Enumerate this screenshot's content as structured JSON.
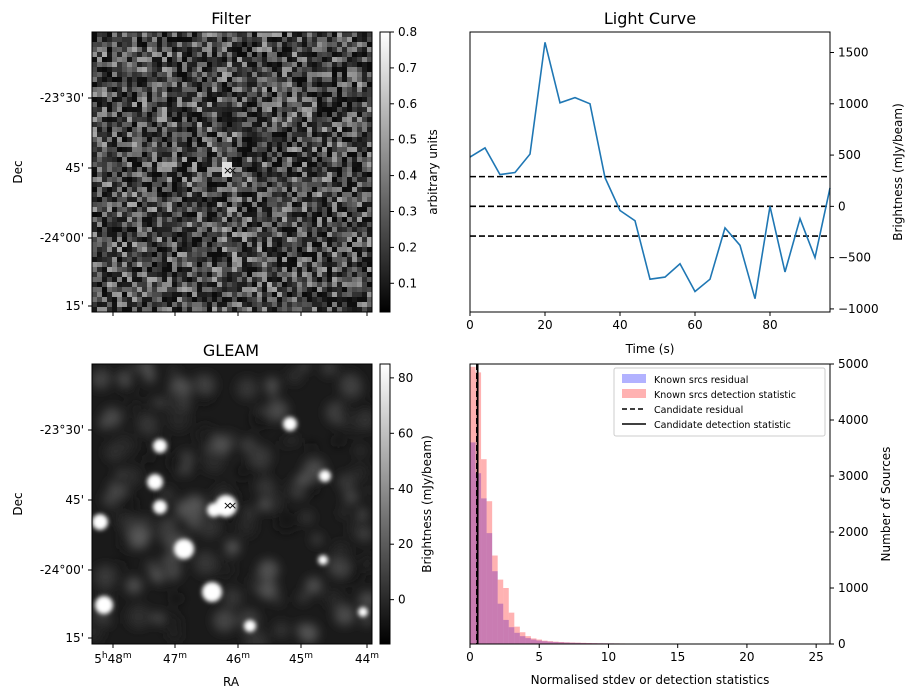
{
  "panels": {
    "filter": {
      "title": "Filter",
      "ylabel": "Dec",
      "yticks": [
        "-23°30'",
        "45'",
        "-24°00'",
        "15'"
      ],
      "colorbar": {
        "label": "arbitrary units",
        "ticks": [
          "0.1",
          "0.2",
          "0.3",
          "0.4",
          "0.5",
          "0.6",
          "0.7",
          "0.8"
        ],
        "range": [
          0.02,
          0.8
        ]
      },
      "markers": {
        "blue": "#0000ff",
        "red": "#ff0000"
      }
    },
    "gleam": {
      "title": "GLEAM",
      "ylabel": "Dec",
      "xlabel": "RA",
      "yticks": [
        "-23°30'",
        "45'",
        "-24°00'",
        "15'"
      ],
      "xticks": [
        "5h48m",
        "47m",
        "46m",
        "45m",
        "44m"
      ],
      "colorbar": {
        "label": "Brightness (mJy/beam)",
        "ticks": [
          "0",
          "20",
          "40",
          "60",
          "80"
        ],
        "range": [
          -16,
          85
        ]
      }
    }
  },
  "chart_data": [
    {
      "type": "line",
      "title": "Light Curve",
      "xlabel": "Time (s)",
      "ylabel": "Brightness (mJy/beam)",
      "xlim": [
        0,
        96
      ],
      "ylim": [
        -1030,
        1700
      ],
      "xticks": [
        0,
        20,
        40,
        60,
        80
      ],
      "yticks": [
        -1000,
        -500,
        0,
        500,
        1000,
        1500
      ],
      "color": "#1f77b4",
      "x": [
        0,
        4,
        8,
        12,
        16,
        20,
        24,
        28,
        32,
        36,
        40,
        44,
        48,
        52,
        56,
        60,
        64,
        68,
        72,
        76,
        80,
        84,
        88,
        92,
        96
      ],
      "y": [
        480,
        570,
        310,
        330,
        510,
        1600,
        1010,
        1060,
        1000,
        280,
        -40,
        -140,
        -710,
        -690,
        -560,
        -830,
        -710,
        -210,
        -380,
        -900,
        0,
        -640,
        -120,
        -500,
        180
      ],
      "hlines": [
        290,
        0,
        -290
      ]
    },
    {
      "type": "bar",
      "xlabel": "Normalised stdev or detection statistics",
      "ylabel": "Number of Sources",
      "xlim": [
        0,
        26
      ],
      "ylim": [
        0,
        5000
      ],
      "xticks": [
        0,
        5,
        10,
        15,
        20,
        25
      ],
      "yticks": [
        0,
        1000,
        2000,
        3000,
        4000,
        5000
      ],
      "bin_width": 0.4,
      "series": [
        {
          "name": "Known srcs residual",
          "color": "#0000ff",
          "values": [
            3600,
            3050,
            2600,
            1980,
            1300,
            720,
            430,
            300,
            200,
            140,
            105,
            80,
            62,
            50,
            42,
            35,
            30,
            26,
            22,
            20,
            17,
            15,
            14,
            13,
            12,
            11,
            10,
            9,
            9,
            8,
            8,
            7,
            7,
            6,
            6,
            6,
            5,
            5,
            5,
            5,
            4,
            4,
            4,
            4,
            3,
            3,
            3,
            3,
            3,
            3,
            3,
            3,
            3,
            3,
            3,
            3,
            3,
            3,
            3,
            3,
            2,
            2,
            2,
            0,
            0
          ]
        },
        {
          "name": "Known srcs detection statistic",
          "color": "#ff0000",
          "values": [
            4950,
            4850,
            3300,
            2550,
            1580,
            1150,
            1000,
            560,
            310,
            210,
            140,
            100,
            80,
            60,
            50,
            42,
            36,
            30,
            27,
            24,
            21,
            18,
            16,
            14,
            13,
            12,
            11,
            10,
            9,
            9,
            8,
            8,
            7,
            7,
            6,
            6,
            6,
            5,
            5,
            5,
            5,
            4,
            4,
            4,
            4,
            3,
            3,
            3,
            3,
            3,
            3,
            3,
            3,
            3,
            3,
            3,
            3,
            3,
            3,
            3,
            2,
            2,
            2,
            0,
            0
          ]
        }
      ],
      "vlines": [
        {
          "name": "Candidate residual",
          "x": 0.5,
          "style": "dashed"
        },
        {
          "name": "Candidate detection statistic",
          "x": 0.55,
          "style": "solid"
        }
      ],
      "legend_position": "top-right"
    }
  ]
}
